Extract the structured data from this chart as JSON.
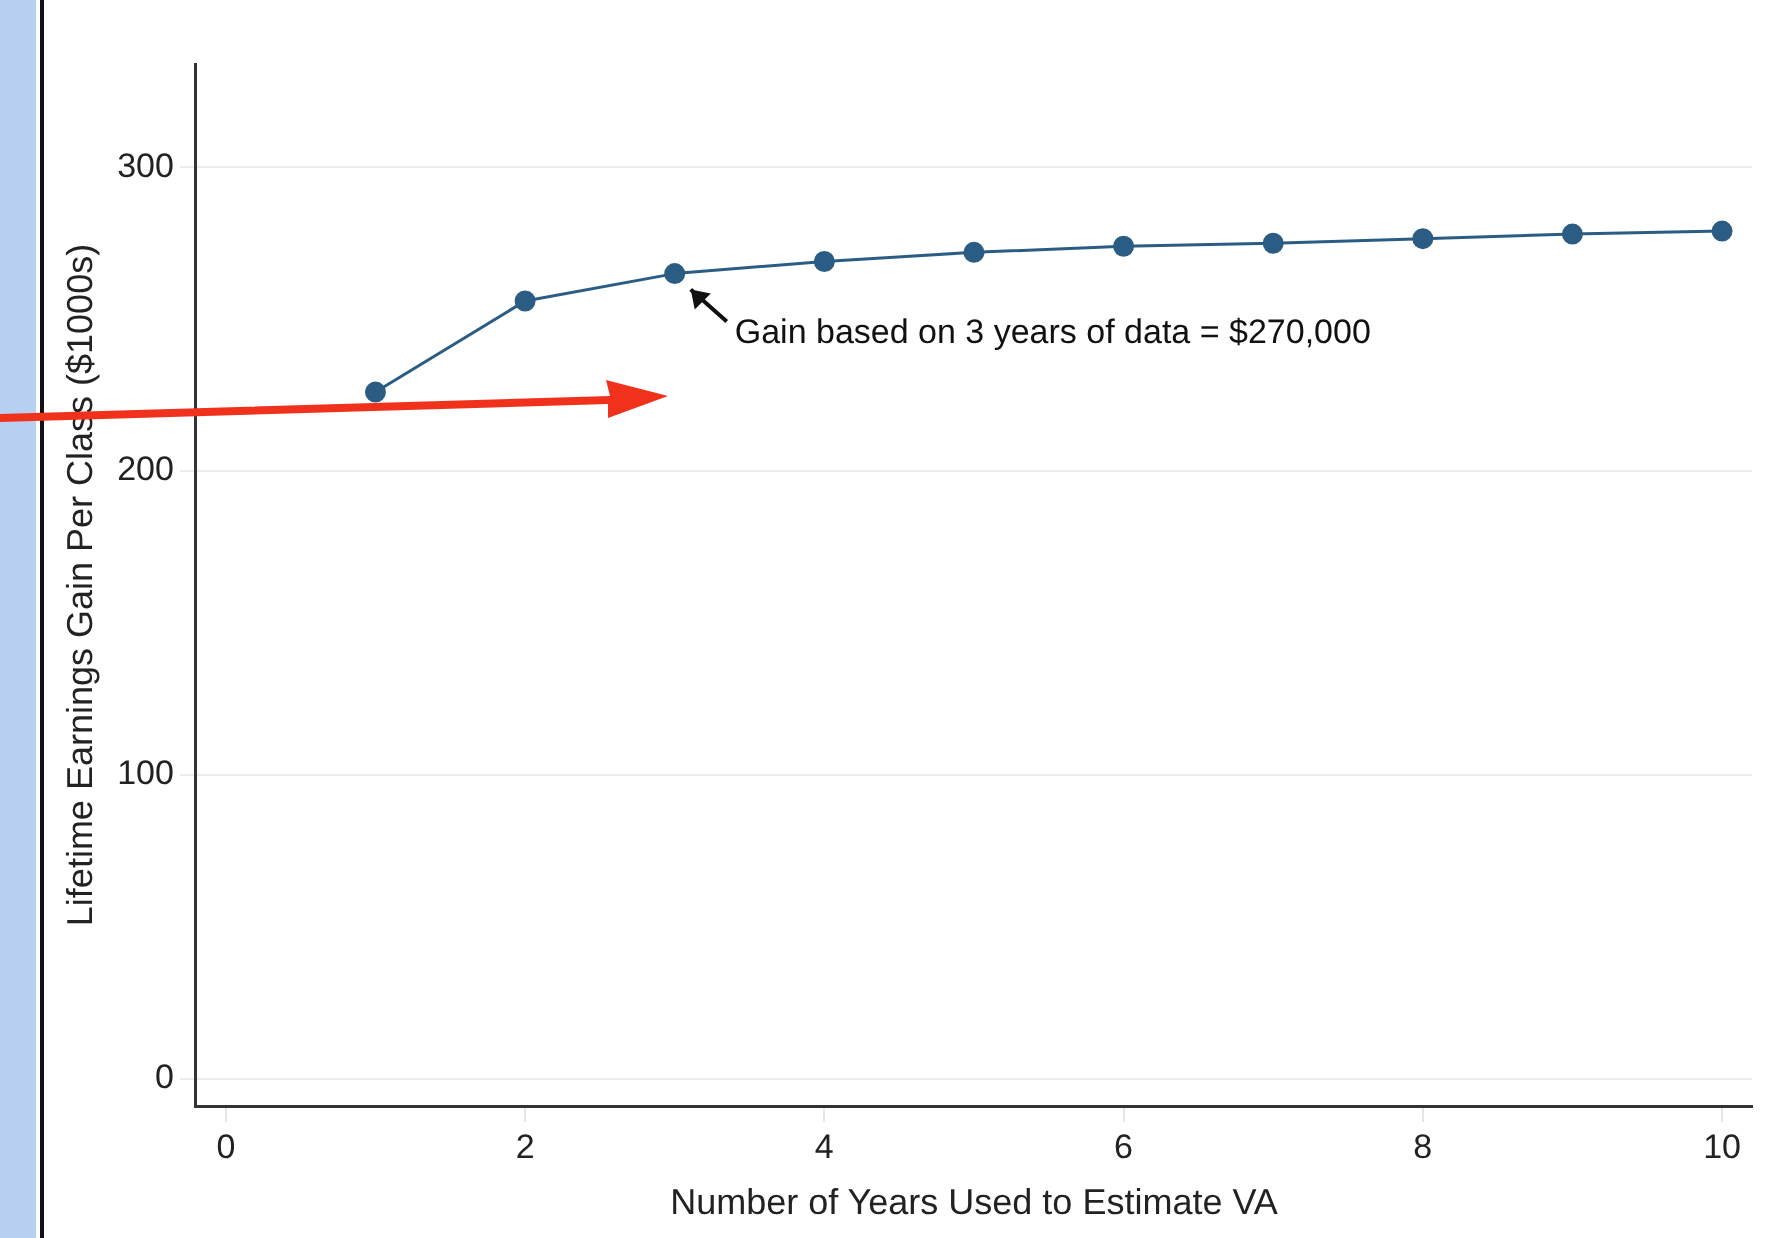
{
  "chart_data": {
    "type": "line",
    "xlabel": "Number of Years Used to Estimate VA",
    "ylabel": "Lifetime Earnings Gain Per Class ($1000s)",
    "x": [
      1,
      2,
      3,
      4,
      5,
      6,
      7,
      8,
      9,
      10
    ],
    "series": [
      {
        "color": "#2b5d84",
        "values": [
          226,
          256,
          265,
          269,
          272,
          274,
          275,
          276.5,
          278,
          279
        ]
      }
    ],
    "xlim": [
      -0.2,
      10.2
    ],
    "xticks": [
      0,
      2,
      4,
      6,
      8,
      10
    ],
    "ylim": [
      -9,
      334
    ],
    "yticks": [
      0,
      100,
      200,
      300
    ],
    "grid": "y",
    "marker": "circle",
    "line_style": "solid",
    "legend": false,
    "annotations": [
      {
        "text": "Gain based on 3 years of data = $270,000",
        "x": 3,
        "y": 265
      }
    ]
  }
}
